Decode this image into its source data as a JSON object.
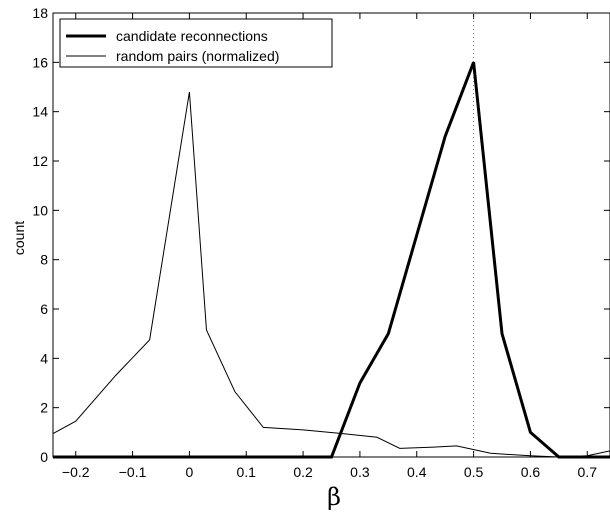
{
  "chart_data": {
    "type": "line",
    "title": "",
    "xlabel": "β",
    "ylabel": "count",
    "xlim": [
      -0.24,
      0.74
    ],
    "ylim": [
      0,
      18
    ],
    "xticks": [
      -0.2,
      -0.1,
      0,
      0.1,
      0.2,
      0.3,
      0.4,
      0.5,
      0.6,
      0.7
    ],
    "xtick_labels": [
      "−0.2",
      "−0.1",
      "0",
      "0.1",
      "0.2",
      "0.3",
      "0.4",
      "0.5",
      "0.6",
      "0.7"
    ],
    "yticks": [
      0,
      2,
      4,
      6,
      8,
      10,
      12,
      14,
      16,
      18
    ],
    "ytick_labels": [
      "0",
      "2",
      "4",
      "6",
      "8",
      "10",
      "12",
      "14",
      "16",
      "18"
    ],
    "grid": false,
    "legend_position": "top-left",
    "reference_line": {
      "x": 0.5,
      "style": "dotted"
    },
    "series": [
      {
        "name": "candidate reconnections",
        "style": "thick",
        "color": "#000000",
        "x": [
          -0.24,
          0.25,
          0.3,
          0.35,
          0.4,
          0.45,
          0.5,
          0.55,
          0.6,
          0.65,
          0.74
        ],
        "y": [
          0,
          0,
          3,
          5,
          9,
          13,
          16,
          5,
          1,
          0,
          0
        ]
      },
      {
        "name": "random pairs (normalized)",
        "style": "thin",
        "color": "#000000",
        "x": [
          -0.24,
          -0.2,
          -0.13,
          -0.07,
          0.0,
          0.03,
          0.08,
          0.13,
          0.2,
          0.27,
          0.33,
          0.37,
          0.43,
          0.47,
          0.53,
          0.6,
          0.65,
          0.7,
          0.74
        ],
        "y": [
          0.95,
          1.45,
          3.3,
          4.75,
          14.8,
          5.15,
          2.65,
          1.2,
          1.1,
          0.95,
          0.8,
          0.35,
          0.4,
          0.45,
          0.15,
          0.05,
          0.0,
          0.05,
          0.25
        ]
      }
    ]
  }
}
